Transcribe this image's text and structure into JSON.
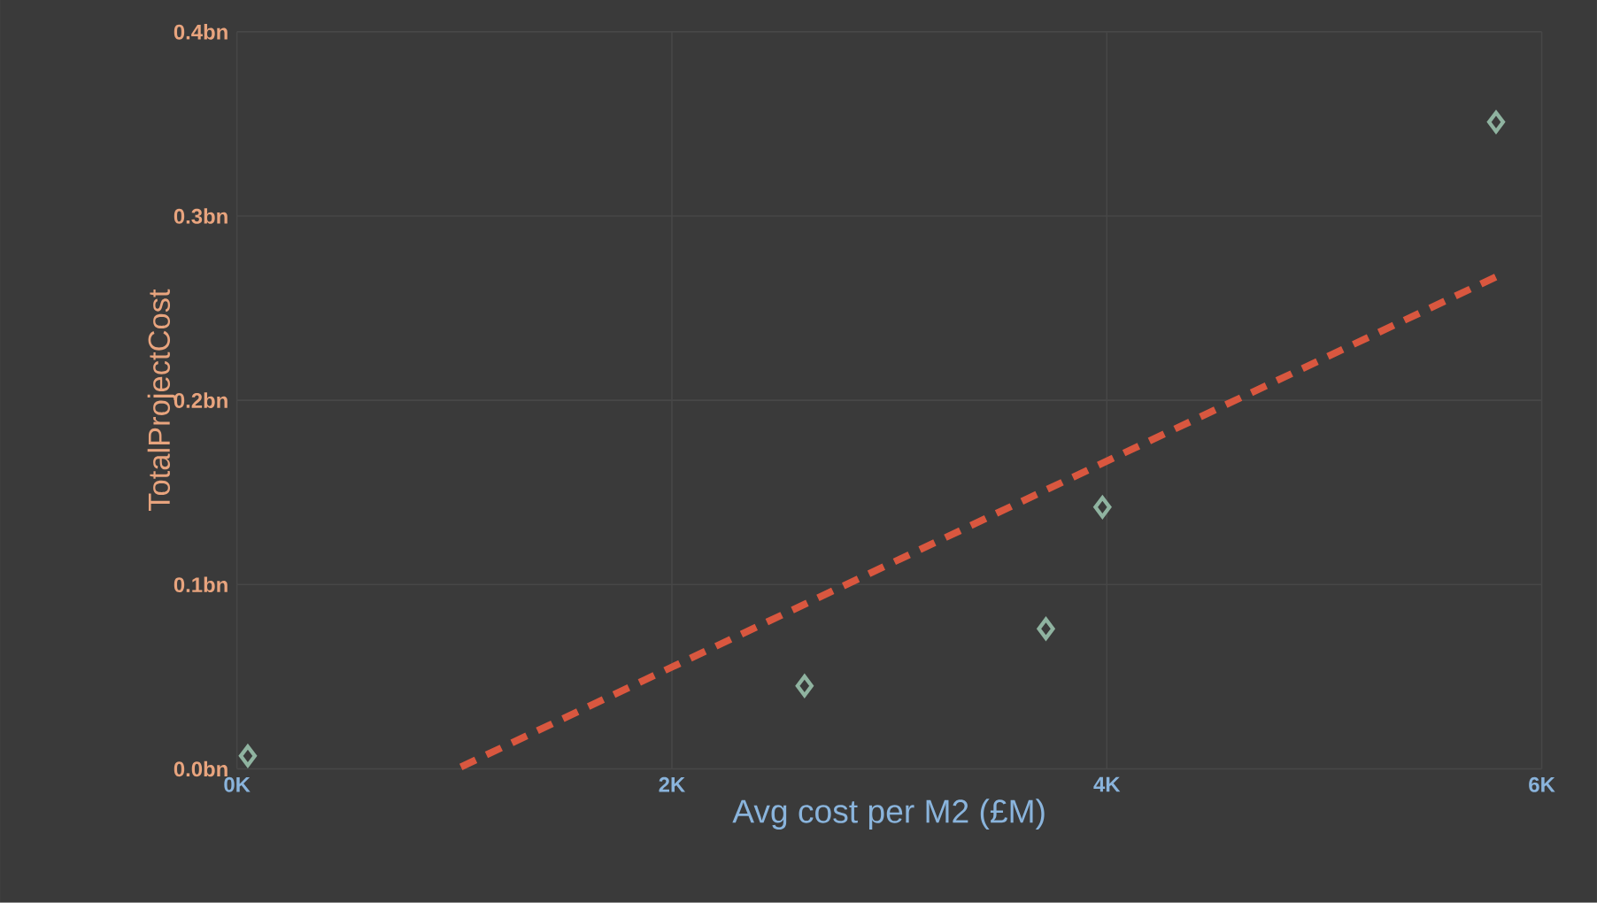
{
  "chart_data": {
    "type": "scatter",
    "xlabel": "Avg cost per M2 (£M)",
    "ylabel": "TotalProjectCost",
    "xlim": [
      0,
      6000
    ],
    "ylim": [
      0,
      0.4
    ],
    "xticks": [
      {
        "value": 0,
        "label": "0K"
      },
      {
        "value": 2000,
        "label": "2K"
      },
      {
        "value": 4000,
        "label": "4K"
      },
      {
        "value": 6000,
        "label": "6K"
      }
    ],
    "yticks": [
      {
        "value": 0,
        "label": "0.0bn"
      },
      {
        "value": 0.1,
        "label": "0.1bn"
      },
      {
        "value": 0.2,
        "label": "0.2bn"
      },
      {
        "value": 0.3,
        "label": "0.3bn"
      },
      {
        "value": 0.4,
        "label": "0.4bn"
      }
    ],
    "grid": true,
    "marker": "diamond",
    "series": [
      {
        "color": "#8fb3a0",
        "x": [
          50,
          2610,
          3720,
          3980,
          5790
        ],
        "values": [
          0.007,
          0.045,
          0.076,
          0.142,
          0.351
        ]
      },
      {
        "type": "line",
        "color": "#d9573f",
        "line_style": "dashed",
        "marker": "none",
        "x": [
          1030,
          5790
        ],
        "values": [
          0.001,
          0.267
        ]
      }
    ]
  }
}
